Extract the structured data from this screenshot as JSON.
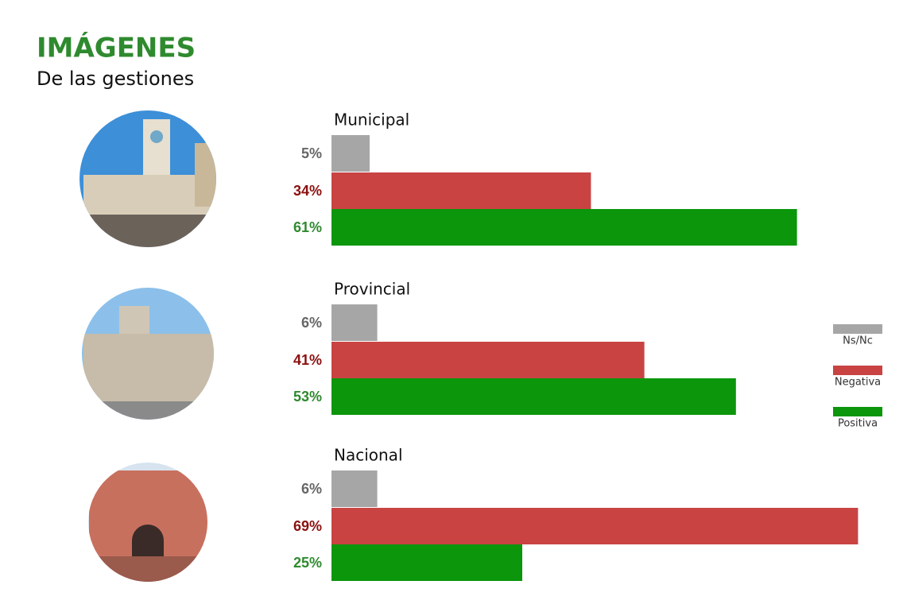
{
  "title": "IMÁGENES",
  "subtitle": "De las gestiones",
  "chart_data": {
    "type": "hbar",
    "categories": [
      "Municipal",
      "Provincial",
      "Nacional"
    ],
    "series": [
      {
        "name": "Ns/Nc",
        "color": "#a6a6a6",
        "values": [
          5,
          6,
          6
        ],
        "value_labels": [
          "5%",
          "6%",
          "6%"
        ]
      },
      {
        "name": "Negativa",
        "color": "#c94343",
        "values": [
          34,
          41,
          69
        ],
        "value_labels": [
          "34%",
          "41%",
          "69%"
        ]
      },
      {
        "name": "Positiva",
        "color": "#0b960b",
        "values": [
          61,
          53,
          25
        ],
        "value_labels": [
          "61%",
          "53%",
          "25%"
        ]
      }
    ],
    "xlim": [
      0,
      100
    ]
  }
}
